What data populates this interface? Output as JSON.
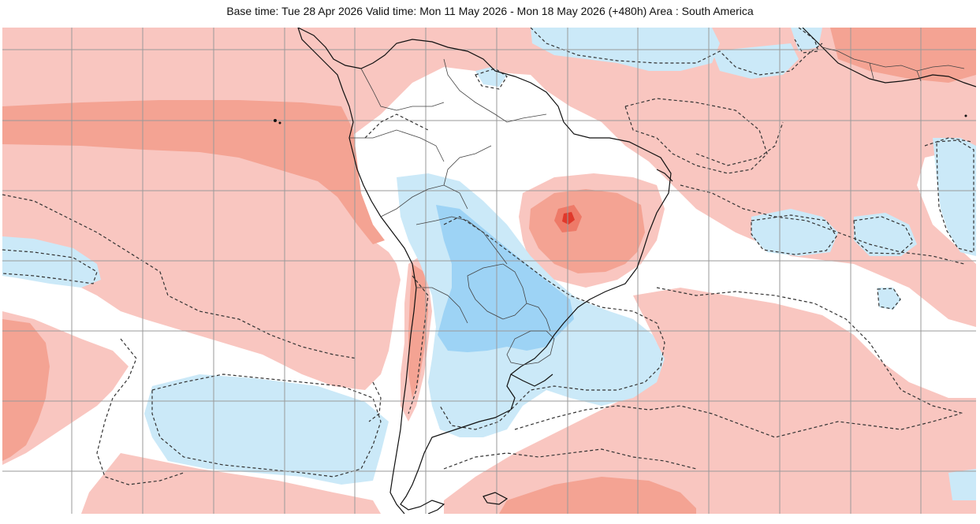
{
  "header": {
    "title": "Base time: Tue 28 Apr 2026 Valid time: Mon 11 May 2026 - Mon 18 May 2026 (+480h) Area : South America"
  },
  "map": {
    "area": "South America",
    "colors": {
      "background": "#ffffff",
      "warm_light": "#f9c6c0",
      "warm_medium": "#f4a393",
      "warm_strong": "#ee7a68",
      "warm_extreme": "#e0392b",
      "cool_light": "#cbe9f8",
      "cool_medium": "#9dd3f5",
      "contour": "#333333",
      "coastline": "#111111",
      "border": "#444444",
      "grid": "#9a9a9a"
    }
  }
}
